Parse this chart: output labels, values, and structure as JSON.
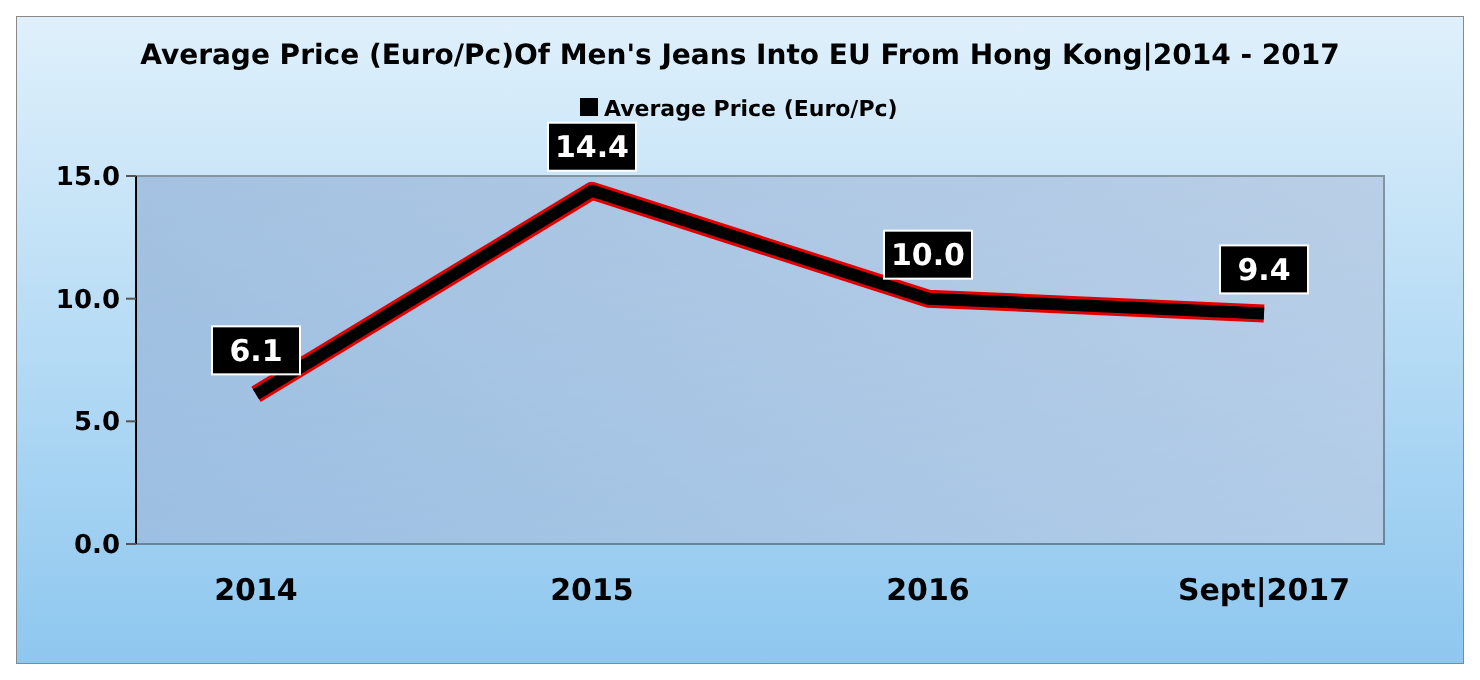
{
  "chart_data": {
    "type": "line",
    "title": "Average Price (Euro/Pc)Of Men's Jeans Into EU From Hong Kong|2014 - 2017",
    "categories": [
      "2014",
      "2015",
      "2016",
      "Sept|2017"
    ],
    "series": [
      {
        "name": "Average Price (Euro/Pc)",
        "color": "#000000",
        "values": [
          6.1,
          14.4,
          10.0,
          9.4
        ],
        "value_labels": [
          "6.1",
          "14.4",
          "10.0",
          "9.4"
        ]
      }
    ],
    "ylim": [
      0,
      15
    ],
    "yticks": [
      {
        "value": 0,
        "label": "0.0"
      },
      {
        "value": 5,
        "label": "5.0"
      },
      {
        "value": 10,
        "label": "10.0"
      },
      {
        "value": 15,
        "label": "15.0"
      }
    ],
    "legend": "top",
    "grid": false,
    "marker": "none"
  }
}
